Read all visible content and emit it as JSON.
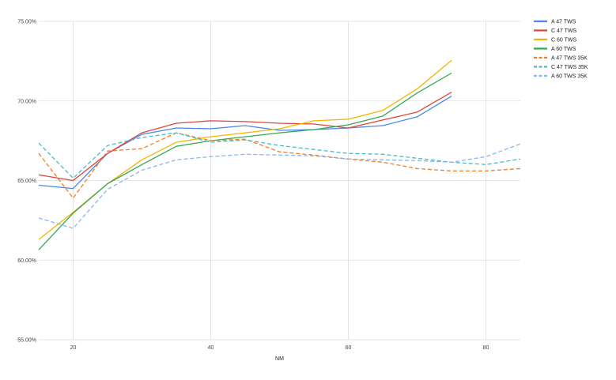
{
  "chart_data": {
    "type": "line",
    "title": "",
    "xlabel": "NM",
    "ylabel": "",
    "xlim": [
      15,
      85
    ],
    "ylim": [
      55,
      75
    ],
    "x_ticks": [
      20,
      40,
      60,
      80
    ],
    "y_ticks": [
      55,
      60,
      65,
      70,
      75
    ],
    "y_tick_labels": [
      "55.00%",
      "60.00%",
      "65.00%",
      "70.00%",
      "75.00%"
    ],
    "grid": true,
    "legend_position": "right",
    "series": [
      {
        "name": "A 47 TWS",
        "color": "#4a86e8",
        "dash": "solid",
        "x": [
          15,
          20,
          25,
          30,
          35,
          40,
          45,
          50,
          55,
          60,
          65,
          70,
          75
        ],
        "y": [
          64.7,
          64.5,
          66.7,
          67.9,
          68.3,
          68.25,
          68.45,
          68.15,
          68.2,
          68.3,
          68.45,
          69.0,
          70.3
        ]
      },
      {
        "name": "C 47 TWS",
        "color": "#e0453a",
        "dash": "solid",
        "x": [
          15,
          20,
          25,
          30,
          35,
          40,
          45,
          50,
          55,
          60,
          65,
          70,
          75
        ],
        "y": [
          65.35,
          65.0,
          66.7,
          68.0,
          68.6,
          68.75,
          68.7,
          68.6,
          68.55,
          68.3,
          68.8,
          69.3,
          70.55
        ]
      },
      {
        "name": "C 60 TWS",
        "color": "#f4b400",
        "dash": "solid",
        "x": [
          15,
          20,
          25,
          30,
          35,
          40,
          45,
          50,
          55,
          60,
          65,
          70,
          75
        ],
        "y": [
          61.3,
          63.0,
          64.8,
          66.3,
          67.4,
          67.75,
          68.0,
          68.25,
          68.75,
          68.85,
          69.4,
          70.75,
          72.55
        ]
      },
      {
        "name": "A 60 TWS",
        "color": "#34a853",
        "dash": "solid",
        "x": [
          15,
          20,
          25,
          30,
          35,
          40,
          45,
          50,
          55,
          60,
          65,
          70,
          75
        ],
        "y": [
          60.65,
          62.95,
          64.8,
          66.0,
          67.15,
          67.5,
          67.75,
          68.0,
          68.2,
          68.5,
          69.05,
          70.5,
          71.75
        ]
      },
      {
        "name": "A 47 TWS 35K",
        "color": "#f57c1f",
        "dash": "dashed",
        "x": [
          15,
          20,
          25,
          30,
          35,
          40,
          45,
          50,
          55,
          60,
          65,
          70,
          75,
          80,
          85
        ],
        "y": [
          66.7,
          63.9,
          66.85,
          67.0,
          68.0,
          67.5,
          67.6,
          66.8,
          66.6,
          66.35,
          66.15,
          65.75,
          65.6,
          65.6,
          65.75
        ]
      },
      {
        "name": "C 47 TWS 35K",
        "color": "#46bdc6",
        "dash": "dashed",
        "x": [
          15,
          20,
          25,
          30,
          35,
          40,
          45,
          50,
          55,
          60,
          65,
          70,
          75,
          80,
          85
        ],
        "y": [
          67.35,
          65.15,
          67.2,
          67.7,
          68.0,
          67.4,
          67.55,
          67.2,
          66.95,
          66.7,
          66.65,
          66.4,
          66.15,
          66.0,
          66.35
        ]
      },
      {
        "name": "A 60 TWS 35K",
        "color": "#8ab4f8",
        "dash": "dashed",
        "x": [
          15,
          20,
          25,
          30,
          35,
          40,
          45,
          50,
          55,
          60,
          65,
          70,
          75,
          80,
          85
        ],
        "y": [
          62.65,
          62.0,
          64.45,
          65.65,
          66.3,
          66.5,
          66.65,
          66.6,
          66.55,
          66.35,
          66.3,
          66.25,
          66.15,
          66.5,
          67.3
        ]
      }
    ]
  }
}
